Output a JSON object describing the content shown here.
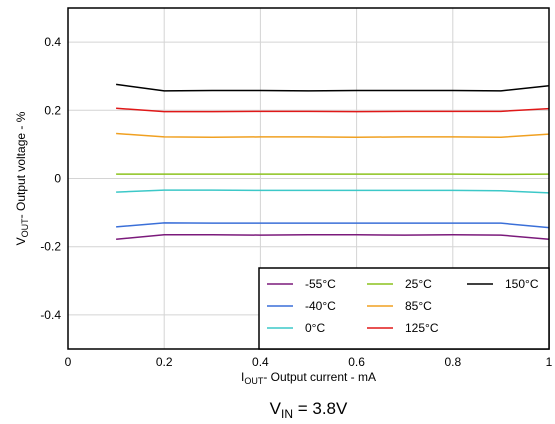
{
  "chart_data": {
    "type": "line",
    "xlabel": {
      "sym": "I",
      "sub": "OUT",
      "text": "- Output current - mA"
    },
    "ylabel": {
      "sym": "V",
      "sub": "OUT",
      "text": "- Output voltage - %"
    },
    "xlim": [
      0,
      1
    ],
    "ylim": [
      -0.5,
      0.5
    ],
    "xticks": [
      "0",
      "0.2",
      "0.4",
      "0.6",
      "0.8",
      "1"
    ],
    "yticks": [
      "-0.4",
      "-0.2",
      "0",
      "0.2",
      "0.4"
    ],
    "grid": true,
    "legend_position": "bottom-right",
    "x": [
      0.1,
      0.2,
      0.3,
      0.4,
      0.5,
      0.6,
      0.7,
      0.8,
      0.9,
      1.0
    ],
    "series": [
      {
        "name": "-55°C",
        "color": "#7b1a7b",
        "values": [
          -0.178,
          -0.165,
          -0.165,
          -0.166,
          -0.165,
          -0.165,
          -0.166,
          -0.165,
          -0.166,
          -0.178
        ]
      },
      {
        "name": "-40°C",
        "color": "#3a6fd8",
        "values": [
          -0.142,
          -0.13,
          -0.131,
          -0.131,
          -0.131,
          -0.131,
          -0.131,
          -0.131,
          -0.131,
          -0.144
        ]
      },
      {
        "name": "0°C",
        "color": "#3cc8c8",
        "values": [
          -0.04,
          -0.034,
          -0.034,
          -0.035,
          -0.035,
          -0.035,
          -0.035,
          -0.035,
          -0.036,
          -0.042
        ]
      },
      {
        "name": "25°C",
        "color": "#8cc21e",
        "values": [
          0.013,
          0.013,
          0.013,
          0.013,
          0.013,
          0.013,
          0.013,
          0.013,
          0.012,
          0.013
        ]
      },
      {
        "name": "85°C",
        "color": "#f0a020",
        "values": [
          0.132,
          0.122,
          0.121,
          0.122,
          0.122,
          0.121,
          0.122,
          0.122,
          0.121,
          0.13
        ]
      },
      {
        "name": "125°C",
        "color": "#e01818",
        "values": [
          0.206,
          0.196,
          0.196,
          0.197,
          0.197,
          0.196,
          0.197,
          0.197,
          0.197,
          0.205
        ]
      },
      {
        "name": "150°C",
        "color": "#000000",
        "values": [
          0.276,
          0.257,
          0.258,
          0.258,
          0.257,
          0.258,
          0.258,
          0.258,
          0.257,
          0.272
        ]
      }
    ],
    "annotation": {
      "sym": "V",
      "sub": "IN",
      "text": " = 3.8V"
    }
  }
}
